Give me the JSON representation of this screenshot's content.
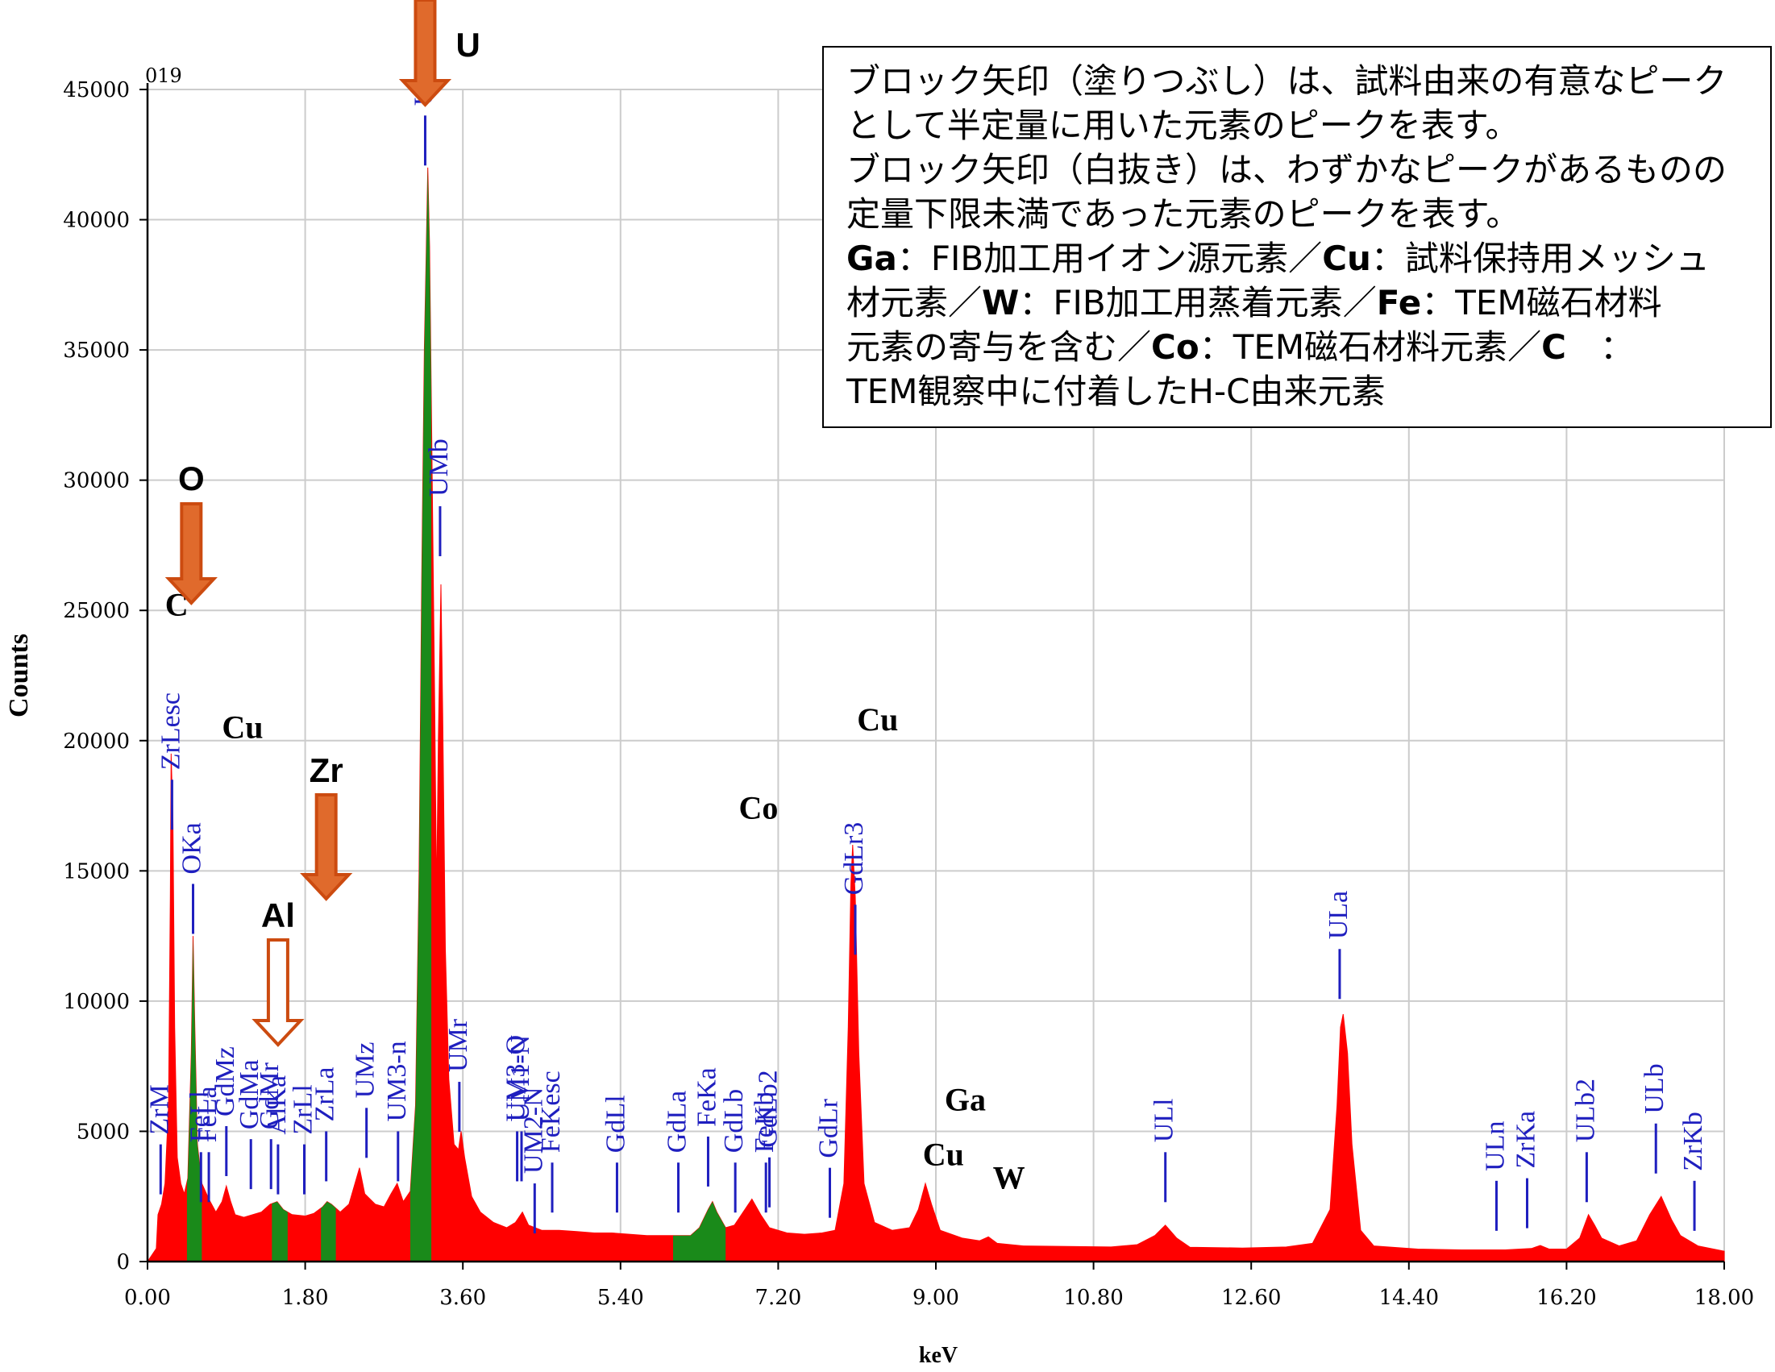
{
  "chart_data": {
    "type": "area",
    "spectrum_id": "019",
    "xlabel": "keV",
    "ylabel": "Counts",
    "xlim": [
      0,
      18
    ],
    "ylim": [
      0,
      45000
    ],
    "x_ticks": [
      "0.00",
      "1.80",
      "3.60",
      "5.40",
      "7.20",
      "9.00",
      "10.80",
      "12.60",
      "14.40",
      "16.20",
      "18.00"
    ],
    "y_ticks": [
      "0",
      "5000",
      "10000",
      "15000",
      "20000",
      "25000",
      "30000",
      "35000",
      "40000",
      "45000"
    ],
    "grid": true,
    "colors": {
      "spectrum": "#ff0000",
      "highlight": "#1a8a1a",
      "line_marker": "#1f1fbf",
      "arrow_fill": "#e06a2c",
      "arrow_outline": "#cc4b10"
    },
    "spectrum_points": [
      [
        0.0,
        0
      ],
      [
        0.1,
        500
      ],
      [
        0.12,
        1800
      ],
      [
        0.16,
        2200
      ],
      [
        0.2,
        3000
      ],
      [
        0.24,
        6000
      ],
      [
        0.26,
        14000
      ],
      [
        0.27,
        19500
      ],
      [
        0.29,
        17000
      ],
      [
        0.31,
        9000
      ],
      [
        0.34,
        4000
      ],
      [
        0.38,
        3000
      ],
      [
        0.42,
        2600
      ],
      [
        0.46,
        3200
      ],
      [
        0.5,
        8000
      ],
      [
        0.52,
        12500
      ],
      [
        0.54,
        9000
      ],
      [
        0.57,
        4500
      ],
      [
        0.62,
        3000
      ],
      [
        0.7,
        2400
      ],
      [
        0.78,
        1900
      ],
      [
        0.85,
        2300
      ],
      [
        0.9,
        2900
      ],
      [
        0.95,
        2300
      ],
      [
        1.0,
        1800
      ],
      [
        1.1,
        1700
      ],
      [
        1.2,
        1800
      ],
      [
        1.3,
        1900
      ],
      [
        1.4,
        2200
      ],
      [
        1.48,
        2300
      ],
      [
        1.55,
        2000
      ],
      [
        1.65,
        1800
      ],
      [
        1.8,
        1750
      ],
      [
        1.9,
        1850
      ],
      [
        2.0,
        2100
      ],
      [
        2.05,
        2300
      ],
      [
        2.1,
        2200
      ],
      [
        2.2,
        1900
      ],
      [
        2.3,
        2200
      ],
      [
        2.42,
        3600
      ],
      [
        2.48,
        2600
      ],
      [
        2.6,
        2200
      ],
      [
        2.7,
        2100
      ],
      [
        2.78,
        2600
      ],
      [
        2.85,
        3000
      ],
      [
        2.92,
        2300
      ],
      [
        3.0,
        2700
      ],
      [
        3.06,
        6000
      ],
      [
        3.1,
        15000
      ],
      [
        3.13,
        26000
      ],
      [
        3.16,
        35000
      ],
      [
        3.18,
        38500
      ],
      [
        3.2,
        42000
      ],
      [
        3.22,
        39000
      ],
      [
        3.25,
        30000
      ],
      [
        3.28,
        21000
      ],
      [
        3.3,
        14000
      ],
      [
        3.32,
        20000
      ],
      [
        3.35,
        26000
      ],
      [
        3.37,
        21000
      ],
      [
        3.4,
        12000
      ],
      [
        3.44,
        7000
      ],
      [
        3.5,
        4500
      ],
      [
        3.55,
        4300
      ],
      [
        3.58,
        5000
      ],
      [
        3.62,
        4000
      ],
      [
        3.7,
        2500
      ],
      [
        3.8,
        1900
      ],
      [
        3.95,
        1500
      ],
      [
        4.1,
        1300
      ],
      [
        4.2,
        1500
      ],
      [
        4.28,
        1900
      ],
      [
        4.35,
        1400
      ],
      [
        4.5,
        1200
      ],
      [
        4.7,
        1200
      ],
      [
        4.9,
        1150
      ],
      [
        5.1,
        1100
      ],
      [
        5.3,
        1100
      ],
      [
        5.5,
        1050
      ],
      [
        5.7,
        1000
      ],
      [
        5.9,
        1000
      ],
      [
        6.0,
        1000
      ],
      [
        6.2,
        1000
      ],
      [
        6.3,
        1300
      ],
      [
        6.4,
        2000
      ],
      [
        6.45,
        2300
      ],
      [
        6.5,
        1900
      ],
      [
        6.6,
        1300
      ],
      [
        6.7,
        1400
      ],
      [
        6.8,
        1900
      ],
      [
        6.9,
        2400
      ],
      [
        7.0,
        1800
      ],
      [
        7.1,
        1300
      ],
      [
        7.3,
        1100
      ],
      [
        7.5,
        1050
      ],
      [
        7.7,
        1100
      ],
      [
        7.85,
        1200
      ],
      [
        7.95,
        3000
      ],
      [
        8.0,
        9000
      ],
      [
        8.03,
        14500
      ],
      [
        8.05,
        16000
      ],
      [
        8.08,
        14000
      ],
      [
        8.12,
        8000
      ],
      [
        8.18,
        3000
      ],
      [
        8.3,
        1500
      ],
      [
        8.5,
        1200
      ],
      [
        8.7,
        1300
      ],
      [
        8.8,
        2000
      ],
      [
        8.88,
        3000
      ],
      [
        8.95,
        2200
      ],
      [
        9.05,
        1200
      ],
      [
        9.3,
        900
      ],
      [
        9.5,
        800
      ],
      [
        9.6,
        950
      ],
      [
        9.7,
        700
      ],
      [
        10.0,
        600
      ],
      [
        10.5,
        580
      ],
      [
        11.0,
        560
      ],
      [
        11.3,
        650
      ],
      [
        11.5,
        1000
      ],
      [
        11.62,
        1400
      ],
      [
        11.75,
        900
      ],
      [
        11.9,
        550
      ],
      [
        12.5,
        520
      ],
      [
        13.0,
        560
      ],
      [
        13.3,
        700
      ],
      [
        13.5,
        2000
      ],
      [
        13.58,
        6000
      ],
      [
        13.62,
        9000
      ],
      [
        13.65,
        9500
      ],
      [
        13.7,
        8000
      ],
      [
        13.75,
        4500
      ],
      [
        13.85,
        1200
      ],
      [
        14.0,
        600
      ],
      [
        14.5,
        480
      ],
      [
        15.0,
        450
      ],
      [
        15.5,
        450
      ],
      [
        15.8,
        500
      ],
      [
        15.9,
        620
      ],
      [
        16.0,
        480
      ],
      [
        16.2,
        480
      ],
      [
        16.35,
        900
      ],
      [
        16.45,
        1800
      ],
      [
        16.52,
        1400
      ],
      [
        16.6,
        900
      ],
      [
        16.8,
        600
      ],
      [
        17.0,
        800
      ],
      [
        17.15,
        1800
      ],
      [
        17.28,
        2500
      ],
      [
        17.4,
        1600
      ],
      [
        17.5,
        1000
      ],
      [
        17.7,
        600
      ],
      [
        18.0,
        400
      ]
    ],
    "highlight_ranges": [
      [
        0.45,
        0.62
      ],
      [
        1.42,
        1.6
      ],
      [
        1.98,
        2.15
      ],
      [
        3.0,
        3.24
      ],
      [
        6.0,
        6.6
      ]
    ],
    "line_markers": [
      {
        "label": "ZrM",
        "x": 0.15,
        "y": 4500
      },
      {
        "label": "FeLl",
        "x": 0.61,
        "y": 4200
      },
      {
        "label": "FeLa",
        "x": 0.7,
        "y": 4200
      },
      {
        "label": "ZrLesc",
        "x": 0.28,
        "y": 18500
      },
      {
        "label": "OKa",
        "x": 0.52,
        "y": 14500
      },
      {
        "label": "GdMz",
        "x": 0.9,
        "y": 5200
      },
      {
        "label": "GdMa",
        "x": 1.18,
        "y": 4700
      },
      {
        "label": "GdMr",
        "x": 1.41,
        "y": 4700
      },
      {
        "label": "AlKa",
        "x": 1.49,
        "y": 4500
      },
      {
        "label": "ZrLl",
        "x": 1.79,
        "y": 4500
      },
      {
        "label": "ZrLa",
        "x": 2.04,
        "y": 5000
      },
      {
        "label": "UMz",
        "x": 2.5,
        "y": 5900
      },
      {
        "label": "UM3-n",
        "x": 2.86,
        "y": 5000
      },
      {
        "label": "UMa",
        "x": 3.17,
        "y": 44000
      },
      {
        "label": "UMb",
        "x": 3.34,
        "y": 29000
      },
      {
        "label": "UMr",
        "x": 3.56,
        "y": 6900
      },
      {
        "label": "UM3-O",
        "x": 4.22,
        "y": 5000
      },
      {
        "label": "UM1-N",
        "x": 4.27,
        "y": 5000
      },
      {
        "label": "UM2-N",
        "x": 4.42,
        "y": 3000
      },
      {
        "label": "FeKesc",
        "x": 4.62,
        "y": 3800
      },
      {
        "label": "GdLl",
        "x": 5.36,
        "y": 3800
      },
      {
        "label": "GdLa",
        "x": 6.06,
        "y": 3800
      },
      {
        "label": "FeKa",
        "x": 6.4,
        "y": 4800
      },
      {
        "label": "GdLb",
        "x": 6.71,
        "y": 3800
      },
      {
        "label": "FeKb",
        "x": 7.06,
        "y": 3800
      },
      {
        "label": "GdLb2",
        "x": 7.1,
        "y": 4000
      },
      {
        "label": "GdLr",
        "x": 7.79,
        "y": 3600
      },
      {
        "label": "GdLr3",
        "x": 8.08,
        "y": 13700
      },
      {
        "label": "ULl",
        "x": 11.62,
        "y": 4200
      },
      {
        "label": "ULa",
        "x": 13.61,
        "y": 12000
      },
      {
        "label": "ULn",
        "x": 15.4,
        "y": 3100
      },
      {
        "label": "ZrKa",
        "x": 15.75,
        "y": 3200
      },
      {
        "label": "ULb2",
        "x": 16.43,
        "y": 4200
      },
      {
        "label": "ULb",
        "x": 17.22,
        "y": 5300
      },
      {
        "label": "ZrKb",
        "x": 17.66,
        "y": 3100
      }
    ],
    "element_labels": [
      {
        "label": "C",
        "x": 0.2,
        "y": 24800
      },
      {
        "label": "Cu",
        "x": 0.85,
        "y": 20100
      },
      {
        "label": "Co",
        "x": 6.75,
        "y": 17000
      },
      {
        "label": "Cu",
        "x": 8.1,
        "y": 20400
      },
      {
        "label": "Ga",
        "x": 9.1,
        "y": 5800
      },
      {
        "label": "Cu",
        "x": 8.85,
        "y": 3700
      },
      {
        "label": "W",
        "x": 9.65,
        "y": 2800
      }
    ],
    "block_arrows": [
      {
        "label": "O",
        "x": 0.5,
        "filled": true
      },
      {
        "label": "U",
        "x": 3.17,
        "filled": true
      },
      {
        "label": "Zr",
        "x": 2.04,
        "filled": true
      },
      {
        "label": "Al",
        "x": 1.49,
        "filled": false
      }
    ]
  },
  "legend_box": {
    "line1": "ブロック矢印（塗りつぶし）は、試料由来の有意なピーク",
    "line2": "として半定量に用いた元素のピークを表す。",
    "line3": "ブロック矢印（白抜き）は、わずかなピークがあるものの",
    "line4": "定量下限未満であった元素のピークを表す。",
    "l5_el1": "Ga",
    "l5_t1": "：FIB加工用イオン源元素／",
    "l5_el2": "Cu",
    "l5_t2": "：試料保持用メッシュ",
    "l6_t1": "材元素／",
    "l6_el1": "W",
    "l6_t2": "：FIB加工用蒸着元素／",
    "l6_el2": "Fe",
    "l6_t3": "：TEM磁石材料",
    "l7_t1": "元素の寄与を含む／",
    "l7_el1": "Co",
    "l7_t2": "：TEM磁石材料元素／",
    "l7_el2": "C",
    "l7_t3": "　：",
    "line8": "TEM観察中に付着したH-C由来元素"
  }
}
